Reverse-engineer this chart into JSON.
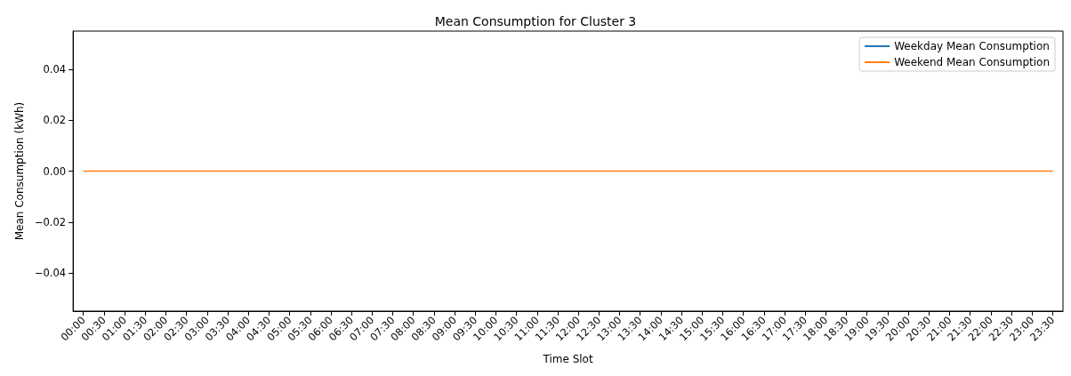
{
  "chart_data": {
    "type": "line",
    "title": "Mean Consumption for Cluster 3",
    "xlabel": "Time Slot",
    "ylabel": "Mean Consumption (kWh)",
    "categories": [
      "00:00",
      "00:30",
      "01:00",
      "01:30",
      "02:00",
      "02:30",
      "03:00",
      "03:30",
      "04:00",
      "04:30",
      "05:00",
      "05:30",
      "06:00",
      "06:30",
      "07:00",
      "07:30",
      "08:00",
      "08:30",
      "09:00",
      "09:30",
      "10:00",
      "10:30",
      "11:00",
      "11:30",
      "12:00",
      "12:30",
      "13:00",
      "13:30",
      "14:00",
      "14:30",
      "15:00",
      "15:30",
      "16:00",
      "16:30",
      "17:00",
      "17:30",
      "18:00",
      "18:30",
      "19:00",
      "19:30",
      "20:00",
      "20:30",
      "21:00",
      "21:30",
      "22:00",
      "22:30",
      "23:00",
      "23:30"
    ],
    "series": [
      {
        "name": "Weekday Mean Consumption",
        "color": "#1f77b4",
        "values": [
          null,
          null,
          null,
          null,
          null,
          null,
          null,
          null,
          null,
          null,
          null,
          null,
          null,
          null,
          null,
          null,
          null,
          null,
          null,
          null,
          null,
          null,
          null,
          null,
          null,
          null,
          null,
          null,
          null,
          null,
          null,
          null,
          null,
          null,
          null,
          null,
          null,
          null,
          null,
          null,
          null,
          null,
          null,
          null,
          null,
          null,
          null,
          null
        ]
      },
      {
        "name": "Weekend Mean Consumption",
        "color": "#ff7f0e",
        "values": [
          0,
          0,
          0,
          0,
          0,
          0,
          0,
          0,
          0,
          0,
          0,
          0,
          0,
          0,
          0,
          0,
          0,
          0,
          0,
          0,
          0,
          0,
          0,
          0,
          0,
          0,
          0,
          0,
          0,
          0,
          0,
          0,
          0,
          0,
          0,
          0,
          0,
          0,
          0,
          0,
          0,
          0,
          0,
          0,
          0,
          0,
          0,
          0
        ]
      }
    ],
    "ylim": [
      -0.055,
      0.055
    ],
    "yticks": [
      {
        "value": -0.04,
        "label": "−0.04"
      },
      {
        "value": -0.02,
        "label": "−0.02"
      },
      {
        "value": 0,
        "label": "0.00"
      },
      {
        "value": 0.02,
        "label": "0.02"
      },
      {
        "value": 0.04,
        "label": "0.04"
      }
    ],
    "legend": "top right",
    "grid": false,
    "marker": "none",
    "line_style": "solid"
  }
}
